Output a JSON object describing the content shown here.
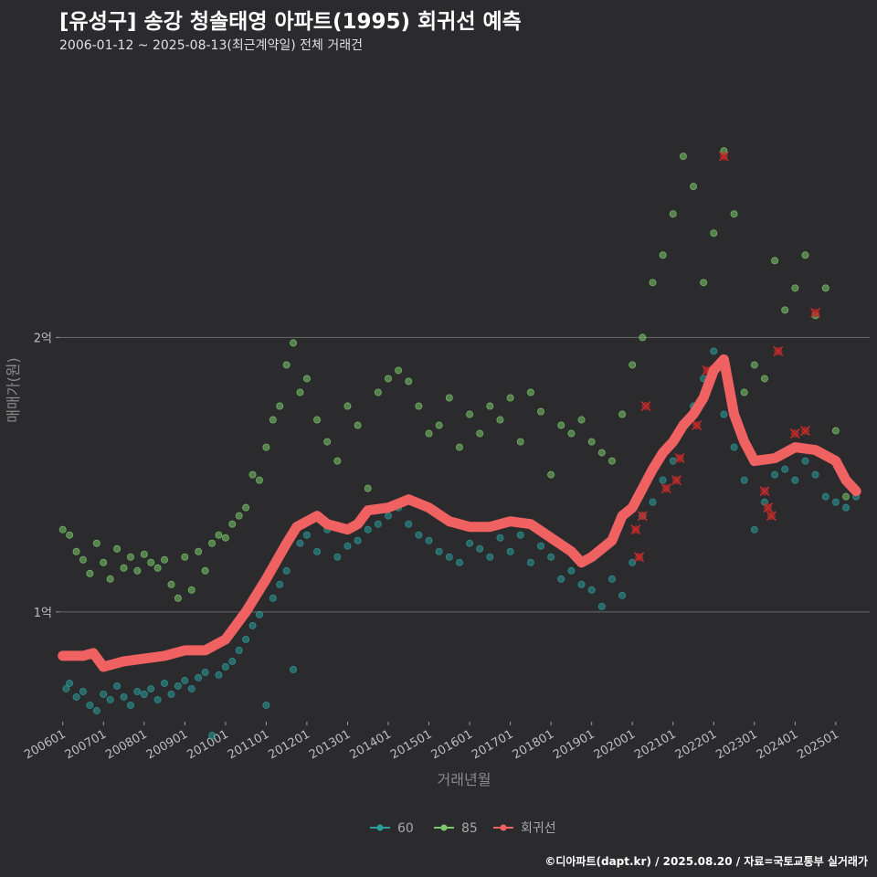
{
  "header": {
    "title": "[유성구] 송강 청솔태영 아파트(1995) 회귀선 예측",
    "subtitle": "2006-01-12 ~ 2025-08-13(최근계약일) 전체 거래건"
  },
  "footer": {
    "credit": "©디아파트(dapt.kr) / 2025.08.20 / 자료=국토교통부 실거래가"
  },
  "colors": {
    "background": "#2b2b2d",
    "gridline": "#6a6a6a",
    "series_60": "#2a9d9a",
    "series_85": "#7ac86a",
    "regression": "#f06262",
    "outlier_marker": "#c42b2b"
  },
  "chart_data": {
    "type": "scatter",
    "xlabel": "거래년월",
    "ylabel": "매매가(원)",
    "xlim": [
      "2005-12-01",
      "2025-11-01"
    ],
    "ylim_eok": [
      0.6,
      2.98
    ],
    "grid": true,
    "legend_position": "bottom",
    "x_ticks": [
      "200601",
      "200701",
      "200801",
      "200901",
      "201001",
      "201101",
      "201201",
      "201301",
      "201401",
      "201501",
      "201601",
      "201701",
      "201801",
      "201901",
      "202001",
      "202101",
      "202201",
      "202301",
      "202401",
      "202501"
    ],
    "y_ticks": [
      {
        "value": 1,
        "label": "1억"
      },
      {
        "value": 2,
        "label": "2억"
      }
    ],
    "legend": [
      {
        "key": "60",
        "label": "60"
      },
      {
        "key": "85",
        "label": "85"
      },
      {
        "key": "regression",
        "label": "회귀선"
      }
    ],
    "series": [
      {
        "name": "60",
        "points": [
          [
            "2006-02",
            0.72
          ],
          [
            "2006-03",
            0.74
          ],
          [
            "2006-05",
            0.69
          ],
          [
            "2006-07",
            0.71
          ],
          [
            "2006-09",
            0.66
          ],
          [
            "2006-11",
            0.64
          ],
          [
            "2007-01",
            0.7
          ],
          [
            "2007-03",
            0.68
          ],
          [
            "2007-05",
            0.73
          ],
          [
            "2007-07",
            0.69
          ],
          [
            "2007-09",
            0.66
          ],
          [
            "2007-11",
            0.71
          ],
          [
            "2008-01",
            0.7
          ],
          [
            "2008-03",
            0.72
          ],
          [
            "2008-05",
            0.68
          ],
          [
            "2008-07",
            0.74
          ],
          [
            "2008-09",
            0.7
          ],
          [
            "2008-11",
            0.73
          ],
          [
            "2009-01",
            0.75
          ],
          [
            "2009-03",
            0.72
          ],
          [
            "2009-05",
            0.76
          ],
          [
            "2009-07",
            0.78
          ],
          [
            "2009-09",
            0.55
          ],
          [
            "2009-11",
            0.77
          ],
          [
            "2010-01",
            0.8
          ],
          [
            "2010-03",
            0.82
          ],
          [
            "2010-05",
            0.86
          ],
          [
            "2010-07",
            0.9
          ],
          [
            "2010-09",
            0.95
          ],
          [
            "2010-11",
            0.99
          ],
          [
            "2011-01",
            0.66
          ],
          [
            "2011-03",
            1.05
          ],
          [
            "2011-05",
            1.1
          ],
          [
            "2011-07",
            1.15
          ],
          [
            "2011-09",
            0.79
          ],
          [
            "2011-11",
            1.25
          ],
          [
            "2012-01",
            1.28
          ],
          [
            "2012-04",
            1.22
          ],
          [
            "2012-07",
            1.3
          ],
          [
            "2012-10",
            1.2
          ],
          [
            "2013-01",
            1.24
          ],
          [
            "2013-04",
            1.26
          ],
          [
            "2013-07",
            1.3
          ],
          [
            "2013-10",
            1.32
          ],
          [
            "2014-01",
            1.35
          ],
          [
            "2014-04",
            1.38
          ],
          [
            "2014-07",
            1.32
          ],
          [
            "2014-10",
            1.28
          ],
          [
            "2015-01",
            1.26
          ],
          [
            "2015-04",
            1.22
          ],
          [
            "2015-07",
            1.2
          ],
          [
            "2015-10",
            1.18
          ],
          [
            "2016-01",
            1.25
          ],
          [
            "2016-04",
            1.23
          ],
          [
            "2016-07",
            1.2
          ],
          [
            "2016-10",
            1.27
          ],
          [
            "2017-01",
            1.22
          ],
          [
            "2017-04",
            1.28
          ],
          [
            "2017-07",
            1.18
          ],
          [
            "2017-10",
            1.24
          ],
          [
            "2018-01",
            1.2
          ],
          [
            "2018-04",
            1.12
          ],
          [
            "2018-07",
            1.15
          ],
          [
            "2018-10",
            1.1
          ],
          [
            "2019-01",
            1.08
          ],
          [
            "2019-04",
            1.02
          ],
          [
            "2019-07",
            1.12
          ],
          [
            "2019-10",
            1.06
          ],
          [
            "2020-01",
            1.18
          ],
          [
            "2020-04",
            1.35
          ],
          [
            "2020-07",
            1.4
          ],
          [
            "2020-10",
            1.48
          ],
          [
            "2021-01",
            1.55
          ],
          [
            "2021-04",
            1.68
          ],
          [
            "2021-07",
            1.75
          ],
          [
            "2021-10",
            1.85
          ],
          [
            "2022-01",
            1.95
          ],
          [
            "2022-04",
            1.72
          ],
          [
            "2022-07",
            1.6
          ],
          [
            "2022-10",
            1.48
          ],
          [
            "2023-01",
            1.3
          ],
          [
            "2023-04",
            1.4
          ],
          [
            "2023-07",
            1.5
          ],
          [
            "2023-10",
            1.52
          ],
          [
            "2024-01",
            1.48
          ],
          [
            "2024-04",
            1.55
          ],
          [
            "2024-07",
            1.5
          ],
          [
            "2024-10",
            1.42
          ],
          [
            "2025-01",
            1.4
          ],
          [
            "2025-04",
            1.38
          ],
          [
            "2025-07",
            1.42
          ]
        ]
      },
      {
        "name": "85",
        "points": [
          [
            "2006-01",
            1.3
          ],
          [
            "2006-03",
            1.28
          ],
          [
            "2006-05",
            1.22
          ],
          [
            "2006-07",
            1.19
          ],
          [
            "2006-09",
            1.14
          ],
          [
            "2006-11",
            1.25
          ],
          [
            "2007-01",
            1.18
          ],
          [
            "2007-03",
            1.12
          ],
          [
            "2007-05",
            1.23
          ],
          [
            "2007-07",
            1.16
          ],
          [
            "2007-09",
            1.2
          ],
          [
            "2007-11",
            1.15
          ],
          [
            "2008-01",
            1.21
          ],
          [
            "2008-03",
            1.18
          ],
          [
            "2008-05",
            1.16
          ],
          [
            "2008-07",
            1.19
          ],
          [
            "2008-09",
            1.1
          ],
          [
            "2008-11",
            1.05
          ],
          [
            "2009-01",
            1.2
          ],
          [
            "2009-03",
            1.08
          ],
          [
            "2009-05",
            1.22
          ],
          [
            "2009-07",
            1.15
          ],
          [
            "2009-09",
            1.25
          ],
          [
            "2009-11",
            1.28
          ],
          [
            "2010-01",
            1.27
          ],
          [
            "2010-03",
            1.32
          ],
          [
            "2010-05",
            1.35
          ],
          [
            "2010-07",
            1.38
          ],
          [
            "2010-09",
            1.5
          ],
          [
            "2010-11",
            1.48
          ],
          [
            "2011-01",
            1.6
          ],
          [
            "2011-03",
            1.7
          ],
          [
            "2011-05",
            1.75
          ],
          [
            "2011-07",
            1.9
          ],
          [
            "2011-09",
            1.98
          ],
          [
            "2011-11",
            1.8
          ],
          [
            "2012-01",
            1.85
          ],
          [
            "2012-04",
            1.7
          ],
          [
            "2012-07",
            1.62
          ],
          [
            "2012-10",
            1.55
          ],
          [
            "2013-01",
            1.75
          ],
          [
            "2013-04",
            1.68
          ],
          [
            "2013-07",
            1.45
          ],
          [
            "2013-10",
            1.8
          ],
          [
            "2014-01",
            1.85
          ],
          [
            "2014-04",
            1.88
          ],
          [
            "2014-07",
            1.84
          ],
          [
            "2014-10",
            1.75
          ],
          [
            "2015-01",
            1.65
          ],
          [
            "2015-04",
            1.68
          ],
          [
            "2015-07",
            1.78
          ],
          [
            "2015-10",
            1.6
          ],
          [
            "2016-01",
            1.72
          ],
          [
            "2016-04",
            1.65
          ],
          [
            "2016-07",
            1.75
          ],
          [
            "2016-10",
            1.7
          ],
          [
            "2017-01",
            1.78
          ],
          [
            "2017-04",
            1.62
          ],
          [
            "2017-07",
            1.8
          ],
          [
            "2017-10",
            1.73
          ],
          [
            "2018-01",
            1.5
          ],
          [
            "2018-04",
            1.68
          ],
          [
            "2018-07",
            1.65
          ],
          [
            "2018-10",
            1.7
          ],
          [
            "2019-01",
            1.62
          ],
          [
            "2019-04",
            1.58
          ],
          [
            "2019-07",
            1.55
          ],
          [
            "2019-10",
            1.72
          ],
          [
            "2020-01",
            1.9
          ],
          [
            "2020-04",
            2.0
          ],
          [
            "2020-07",
            2.2
          ],
          [
            "2020-10",
            2.3
          ],
          [
            "2021-01",
            2.45
          ],
          [
            "2021-04",
            2.66
          ],
          [
            "2021-07",
            2.55
          ],
          [
            "2021-10",
            2.2
          ],
          [
            "2022-01",
            2.38
          ],
          [
            "2022-04",
            2.68
          ],
          [
            "2022-07",
            2.45
          ],
          [
            "2022-10",
            1.8
          ],
          [
            "2023-01",
            1.9
          ],
          [
            "2023-04",
            1.85
          ],
          [
            "2023-07",
            2.28
          ],
          [
            "2023-10",
            2.1
          ],
          [
            "2024-01",
            2.18
          ],
          [
            "2024-04",
            2.3
          ],
          [
            "2024-07",
            2.08
          ],
          [
            "2024-10",
            2.18
          ],
          [
            "2025-01",
            1.66
          ],
          [
            "2025-04",
            1.42
          ]
        ]
      }
    ],
    "regression": [
      [
        "2006-01",
        0.84
      ],
      [
        "2006-07",
        0.84
      ],
      [
        "2006-10",
        0.85
      ],
      [
        "2007-01",
        0.8
      ],
      [
        "2007-07",
        0.82
      ],
      [
        "2008-01",
        0.83
      ],
      [
        "2008-07",
        0.84
      ],
      [
        "2009-01",
        0.86
      ],
      [
        "2009-07",
        0.86
      ],
      [
        "2010-01",
        0.9
      ],
      [
        "2010-07",
        1.0
      ],
      [
        "2011-01",
        1.12
      ],
      [
        "2011-07",
        1.25
      ],
      [
        "2011-10",
        1.31
      ],
      [
        "2012-01",
        1.33
      ],
      [
        "2012-04",
        1.35
      ],
      [
        "2012-07",
        1.32
      ],
      [
        "2012-10",
        1.31
      ],
      [
        "2013-01",
        1.3
      ],
      [
        "2013-04",
        1.32
      ],
      [
        "2013-07",
        1.37
      ],
      [
        "2014-01",
        1.38
      ],
      [
        "2014-07",
        1.41
      ],
      [
        "2015-01",
        1.38
      ],
      [
        "2015-07",
        1.33
      ],
      [
        "2016-01",
        1.31
      ],
      [
        "2016-07",
        1.31
      ],
      [
        "2017-01",
        1.33
      ],
      [
        "2017-07",
        1.32
      ],
      [
        "2018-01",
        1.27
      ],
      [
        "2018-07",
        1.22
      ],
      [
        "2018-10",
        1.18
      ],
      [
        "2019-01",
        1.2
      ],
      [
        "2019-07",
        1.26
      ],
      [
        "2019-10",
        1.35
      ],
      [
        "2020-01",
        1.38
      ],
      [
        "2020-07",
        1.52
      ],
      [
        "2020-10",
        1.58
      ],
      [
        "2021-01",
        1.62
      ],
      [
        "2021-04",
        1.68
      ],
      [
        "2021-07",
        1.72
      ],
      [
        "2021-10",
        1.78
      ],
      [
        "2022-01",
        1.88
      ],
      [
        "2022-04",
        1.92
      ],
      [
        "2022-07",
        1.72
      ],
      [
        "2022-10",
        1.62
      ],
      [
        "2023-01",
        1.55
      ],
      [
        "2023-07",
        1.56
      ],
      [
        "2023-10",
        1.58
      ],
      [
        "2024-01",
        1.6
      ],
      [
        "2024-07",
        1.59
      ],
      [
        "2024-10",
        1.57
      ],
      [
        "2025-01",
        1.55
      ],
      [
        "2025-04",
        1.48
      ],
      [
        "2025-07",
        1.44
      ]
    ],
    "outliers": [
      [
        "2020-02",
        1.3
      ],
      [
        "2020-03",
        1.2
      ],
      [
        "2020-04",
        1.35
      ],
      [
        "2020-05",
        1.75
      ],
      [
        "2020-11",
        1.45
      ],
      [
        "2021-02",
        1.48
      ],
      [
        "2021-03",
        1.56
      ],
      [
        "2021-08",
        1.68
      ],
      [
        "2021-11",
        1.88
      ],
      [
        "2022-04",
        2.66
      ],
      [
        "2023-04",
        1.44
      ],
      [
        "2023-05",
        1.38
      ],
      [
        "2023-06",
        1.35
      ],
      [
        "2023-08",
        1.95
      ],
      [
        "2024-01",
        1.65
      ],
      [
        "2024-04",
        1.66
      ],
      [
        "2024-07",
        2.09
      ]
    ]
  }
}
